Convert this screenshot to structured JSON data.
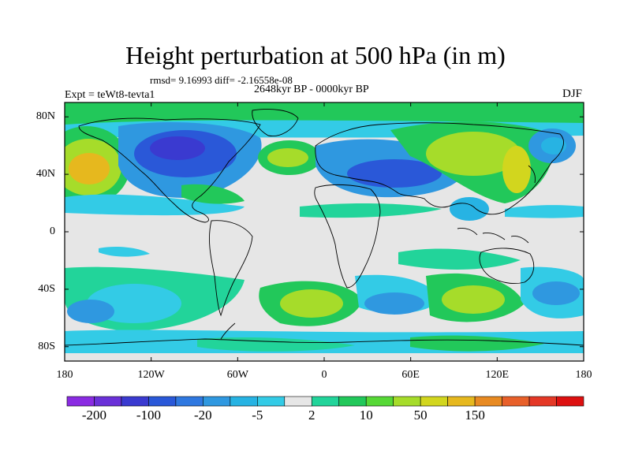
{
  "header": {
    "title": "Height perturbation at 500 hPa (in m)",
    "stats": "rmsd= 9.16993 diff= -2.16558e-08",
    "period": "2648kyr BP - 0000kyr BP",
    "experiment": "Expt = teWt8-tevta1",
    "season": "DJF"
  },
  "axes": {
    "x_ticks": [
      {
        "label": "180",
        "lon": -180
      },
      {
        "label": "120W",
        "lon": -120
      },
      {
        "label": "60W",
        "lon": -60
      },
      {
        "label": "0",
        "lon": 0
      },
      {
        "label": "60E",
        "lon": 60
      },
      {
        "label": "120E",
        "lon": 120
      },
      {
        "label": "180",
        "lon": 180
      }
    ],
    "y_ticks": [
      {
        "label": "80N",
        "lat": 80
      },
      {
        "label": "40N",
        "lat": 40
      },
      {
        "label": "0",
        "lat": 0
      },
      {
        "label": "40S",
        "lat": -40
      },
      {
        "label": "80S",
        "lat": -80
      }
    ]
  },
  "colorbar": {
    "colors": [
      "#8a2be2",
      "#6a30d8",
      "#3a3ad0",
      "#2a58d8",
      "#2f78e0",
      "#2f98e0",
      "#27b3e3",
      "#33cbe6",
      "#e6e6e6",
      "#22d49a",
      "#22c85a",
      "#56d836",
      "#a6dc2a",
      "#d2d61e",
      "#e6b81e",
      "#e88a22",
      "#e8602a",
      "#e43826",
      "#dd1010"
    ],
    "labels": [
      {
        "text": "-200",
        "boundary": 1
      },
      {
        "text": "-100",
        "boundary": 3
      },
      {
        "text": "-20",
        "boundary": 5
      },
      {
        "text": "-5",
        "boundary": 7
      },
      {
        "text": "2",
        "boundary": 9
      },
      {
        "text": "10",
        "boundary": 11
      },
      {
        "text": "50",
        "boundary": 13
      },
      {
        "text": "150",
        "boundary": 15
      }
    ]
  }
}
